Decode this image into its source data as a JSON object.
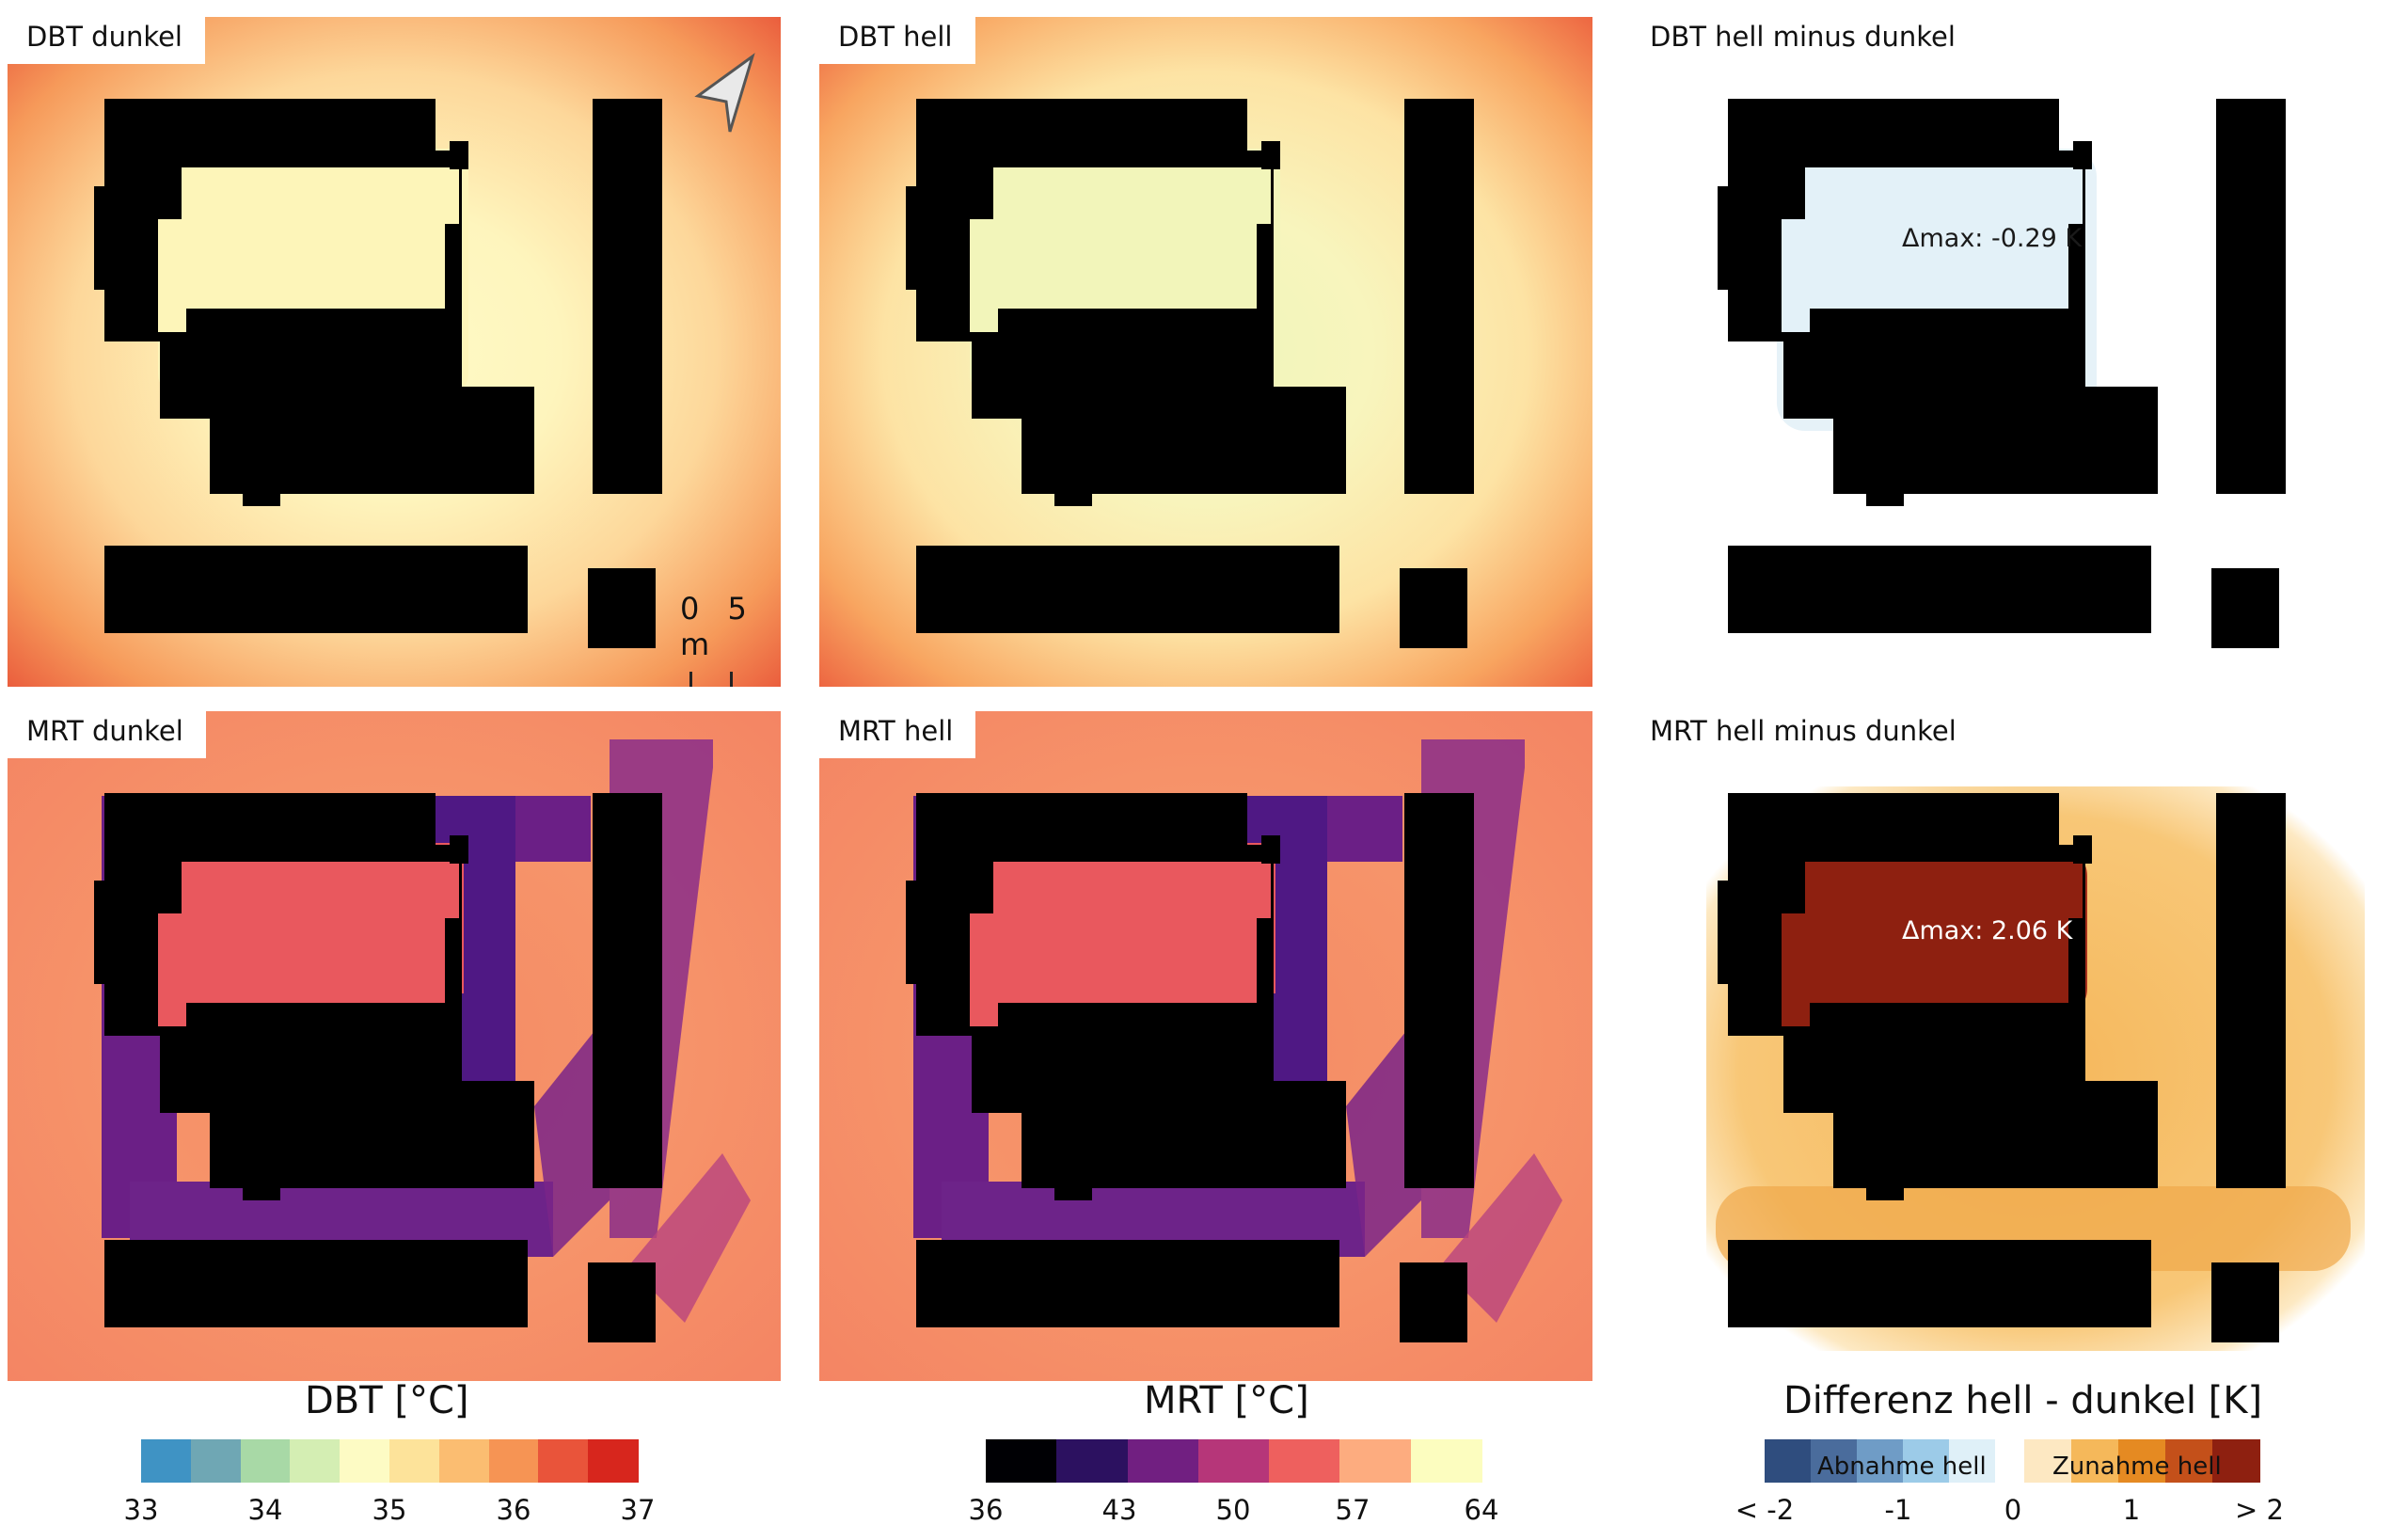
{
  "panels": [
    {
      "id": "dbt-dunkel",
      "title": "DBT dunkel"
    },
    {
      "id": "dbt-hell",
      "title": "DBT hell"
    },
    {
      "id": "dbt-diff",
      "title": "DBT hell minus dunkel",
      "annotation": "Δmax: -0.29 K"
    },
    {
      "id": "mrt-dunkel",
      "title": "MRT dunkel"
    },
    {
      "id": "mrt-hell",
      "title": "MRT hell"
    },
    {
      "id": "mrt-diff",
      "title": "MRT hell minus dunkel",
      "annotation": "Δmax: 2.06 K"
    }
  ],
  "map_elements": {
    "north_arrow": "north-arrow-icon",
    "scale_zero": "0",
    "scale_label": "5 m"
  },
  "legends": {
    "dbt": {
      "title": "DBT [°C]",
      "ticks": [
        "33",
        "34",
        "35",
        "36",
        "37"
      ],
      "colors": [
        "#3f93c4",
        "#6fa7b4",
        "#a8d9a6",
        "#d4eeb3",
        "#fdfbc4",
        "#fde39a",
        "#fbbd71",
        "#f69454",
        "#e9543a",
        "#d7261d"
      ]
    },
    "mrt": {
      "title": "MRT [°C]",
      "ticks": [
        "36",
        "43",
        "50",
        "57",
        "64"
      ],
      "colors": [
        "#000004",
        "#2c1160",
        "#711f81",
        "#b63679",
        "#ee605e",
        "#fdac7f",
        "#fcfdbf"
      ]
    },
    "diff": {
      "title": "Differenz hell - dunkel [K]",
      "ticks": [
        "< -2",
        "-1",
        "0",
        "1",
        "> 2"
      ],
      "label_decrease": "Abnahme hell",
      "label_increase": "Zunahme hell",
      "colors_decrease": [
        "#2f4d7e",
        "#4a6c9c",
        "#6f9cc6",
        "#9ccbe8",
        "#dff0f8"
      ],
      "colors_increase": [
        "#fde8c2",
        "#f5b85a",
        "#e58a22",
        "#c4501a",
        "#8e2010"
      ]
    }
  }
}
